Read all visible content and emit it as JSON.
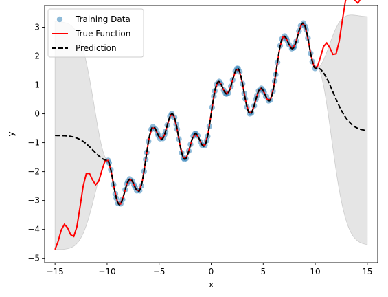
{
  "chart_data": {
    "type": "line",
    "xlabel": "x",
    "ylabel": "y",
    "xlim": [
      -16,
      16
    ],
    "ylim": [
      -5.15,
      3.75
    ],
    "xticks": [
      -15,
      -10,
      -5,
      0,
      5,
      10,
      15
    ],
    "yticks": [
      -5,
      -4,
      -3,
      -2,
      -1,
      0,
      1,
      2,
      3
    ],
    "legend_placement": "top-left",
    "grid": false,
    "legend": [
      {
        "label": "Training Data",
        "kind": "marker",
        "color": "#1f77b4"
      },
      {
        "label": "True Function",
        "kind": "line",
        "color": "#ff0000"
      },
      {
        "label": "Prediction",
        "kind": "dashed",
        "color": "#000000"
      }
    ],
    "colors": {
      "training": "#1f77b4",
      "true_function": "#ff0000",
      "prediction": "#000000",
      "band": "#cccccc"
    }
  }
}
